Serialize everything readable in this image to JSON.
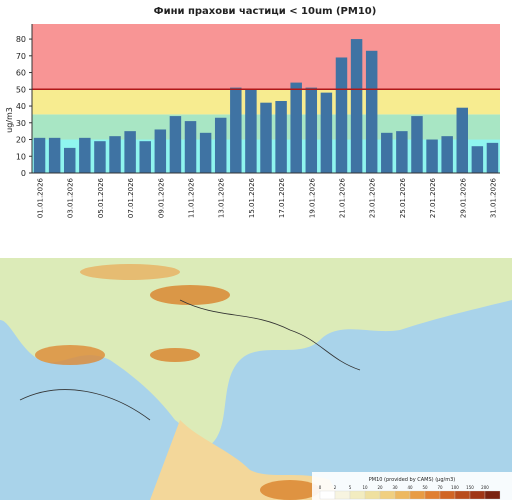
{
  "chart_data": {
    "type": "bar",
    "title": "Фини прахови частици < 10um (PM10)",
    "y_label": "ug/m3",
    "categories": [
      "01.01.2026",
      null,
      "03.01.2026",
      null,
      "05.01.2026",
      null,
      "07.01.2026",
      null,
      "09.01.2026",
      null,
      "11.01.2026",
      null,
      "13.01.2026",
      null,
      "15.01.2026",
      null,
      "17.01.2026",
      null,
      "19.01.2026",
      null,
      "21.01.2026",
      null,
      "23.01.2026",
      null,
      "25.01.2026",
      null,
      "27.01.2026",
      null,
      "29.01.2026",
      null,
      "31.01.2026"
    ],
    "values": [
      21,
      21,
      15,
      21,
      19,
      22,
      25,
      19,
      26,
      34,
      31,
      24,
      33,
      51,
      50,
      42,
      43,
      54,
      51,
      48,
      69,
      80,
      73,
      24,
      25,
      34,
      20,
      22,
      39,
      16,
      18
    ],
    "color": "#3f73a3",
    "ylim": [
      0,
      89
    ],
    "yticks": [
      0,
      10,
      20,
      30,
      40,
      50,
      60,
      70,
      80
    ],
    "bands": [
      {
        "from": 0,
        "to": 20,
        "color": "#8ff5ef"
      },
      {
        "from": 20,
        "to": 35,
        "color": "#a8e6c4"
      },
      {
        "from": 35,
        "to": 50,
        "color": "#f7ec90"
      },
      {
        "from": 50,
        "to": 89,
        "color": "#f89595"
      }
    ],
    "threshold": {
      "value": 50,
      "color": "#b01818"
    }
  },
  "map": {
    "legend_title": "PM10 (provided by CAMS) (µg/m3)",
    "legend_ticks": [
      "0",
      "2",
      "5",
      "10",
      "20",
      "30",
      "40",
      "50",
      "70",
      "100",
      "150",
      "200"
    ]
  }
}
